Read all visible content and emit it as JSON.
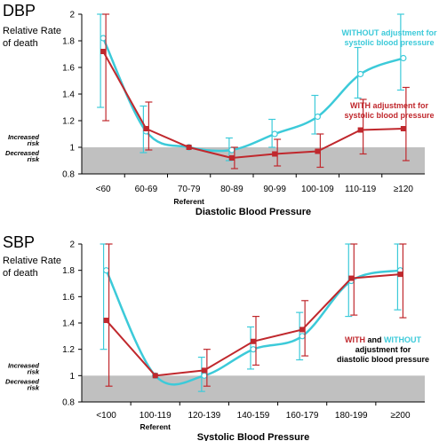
{
  "colors": {
    "with": "#c0282d",
    "without": "#3ccad9",
    "risk_band": "#c0c0c0",
    "axis": "#000000"
  },
  "chart_data": [
    {
      "type": "line",
      "title": "DBP",
      "ylabel_lines": [
        "Relative Rate",
        "of death"
      ],
      "xlabel": "Diastolic Blood Pressure",
      "categories": [
        "<60",
        "60-69",
        "70-79",
        "80-89",
        "90-99",
        "100-109",
        "110-119",
        "≥120"
      ],
      "referent_category": "70-79",
      "referent_label": "Referent",
      "ylim": [
        0.8,
        2
      ],
      "yticks": [
        "0.8",
        "1",
        "1.2",
        "1.4",
        "1.6",
        "1.8",
        "2"
      ],
      "increased_risk_lines": [
        "Increased",
        "risk"
      ],
      "decreased_risk_lines": [
        "Decreased",
        "risk"
      ],
      "series": [
        {
          "key": "without",
          "values": [
            1.82,
            1.12,
            1.0,
            0.98,
            1.1,
            1.23,
            1.55,
            1.67
          ],
          "lower": [
            1.3,
            0.96,
            1.0,
            0.9,
            1.0,
            1.1,
            1.37,
            1.43
          ],
          "upper": [
            2.0,
            1.31,
            1.0,
            1.07,
            1.21,
            1.39,
            1.75,
            2.0
          ]
        },
        {
          "key": "with",
          "values": [
            1.72,
            1.14,
            1.0,
            0.92,
            0.95,
            0.97,
            1.13,
            1.14
          ],
          "lower": [
            1.2,
            0.98,
            1.0,
            0.84,
            0.86,
            0.85,
            0.95,
            0.9
          ],
          "upper": [
            2.0,
            1.34,
            1.0,
            1.0,
            1.06,
            1.1,
            1.36,
            1.45
          ]
        }
      ],
      "annotations": [
        {
          "key": "without",
          "lines": [
            "WITHOUT adjustment for",
            "systolic blood pressure"
          ]
        },
        {
          "key": "with",
          "lines": [
            "WITH adjustment for",
            "systolic blood pressure"
          ]
        }
      ]
    },
    {
      "type": "line",
      "title": "SBP",
      "ylabel_lines": [
        "Relative Rate",
        "of death"
      ],
      "xlabel": "Systolic Blood Pressure",
      "categories": [
        "<100",
        "100-119",
        "120-139",
        "140-159",
        "160-179",
        "180-199",
        "≥200"
      ],
      "referent_category": "100-119",
      "referent_label": "Referent",
      "ylim": [
        0.8,
        2
      ],
      "yticks": [
        "0.8",
        "1",
        "1.2",
        "1.4",
        "1.6",
        "1.8",
        "2"
      ],
      "increased_risk_lines": [
        "Increased",
        "risk"
      ],
      "decreased_risk_lines": [
        "Decreased",
        "risk"
      ],
      "series": [
        {
          "key": "without",
          "values": [
            1.8,
            1.0,
            1.0,
            1.2,
            1.3,
            1.72,
            1.8
          ],
          "lower": [
            1.2,
            1.0,
            0.88,
            1.05,
            1.12,
            1.45,
            1.5
          ],
          "upper": [
            2.0,
            1.0,
            1.14,
            1.37,
            1.48,
            2.0,
            2.0
          ]
        },
        {
          "key": "with",
          "values": [
            1.42,
            1.0,
            1.04,
            1.26,
            1.35,
            1.74,
            1.77
          ],
          "lower": [
            0.92,
            1.0,
            0.92,
            1.08,
            1.15,
            1.46,
            1.44
          ],
          "upper": [
            2.0,
            1.0,
            1.2,
            1.45,
            1.57,
            2.0,
            2.0
          ]
        }
      ],
      "annotation": {
        "word_with": "WITH",
        "word_and": " and ",
        "word_without": "WITHOUT",
        "lines": [
          "adjustment for",
          "diastolic blood pressure"
        ]
      }
    }
  ]
}
